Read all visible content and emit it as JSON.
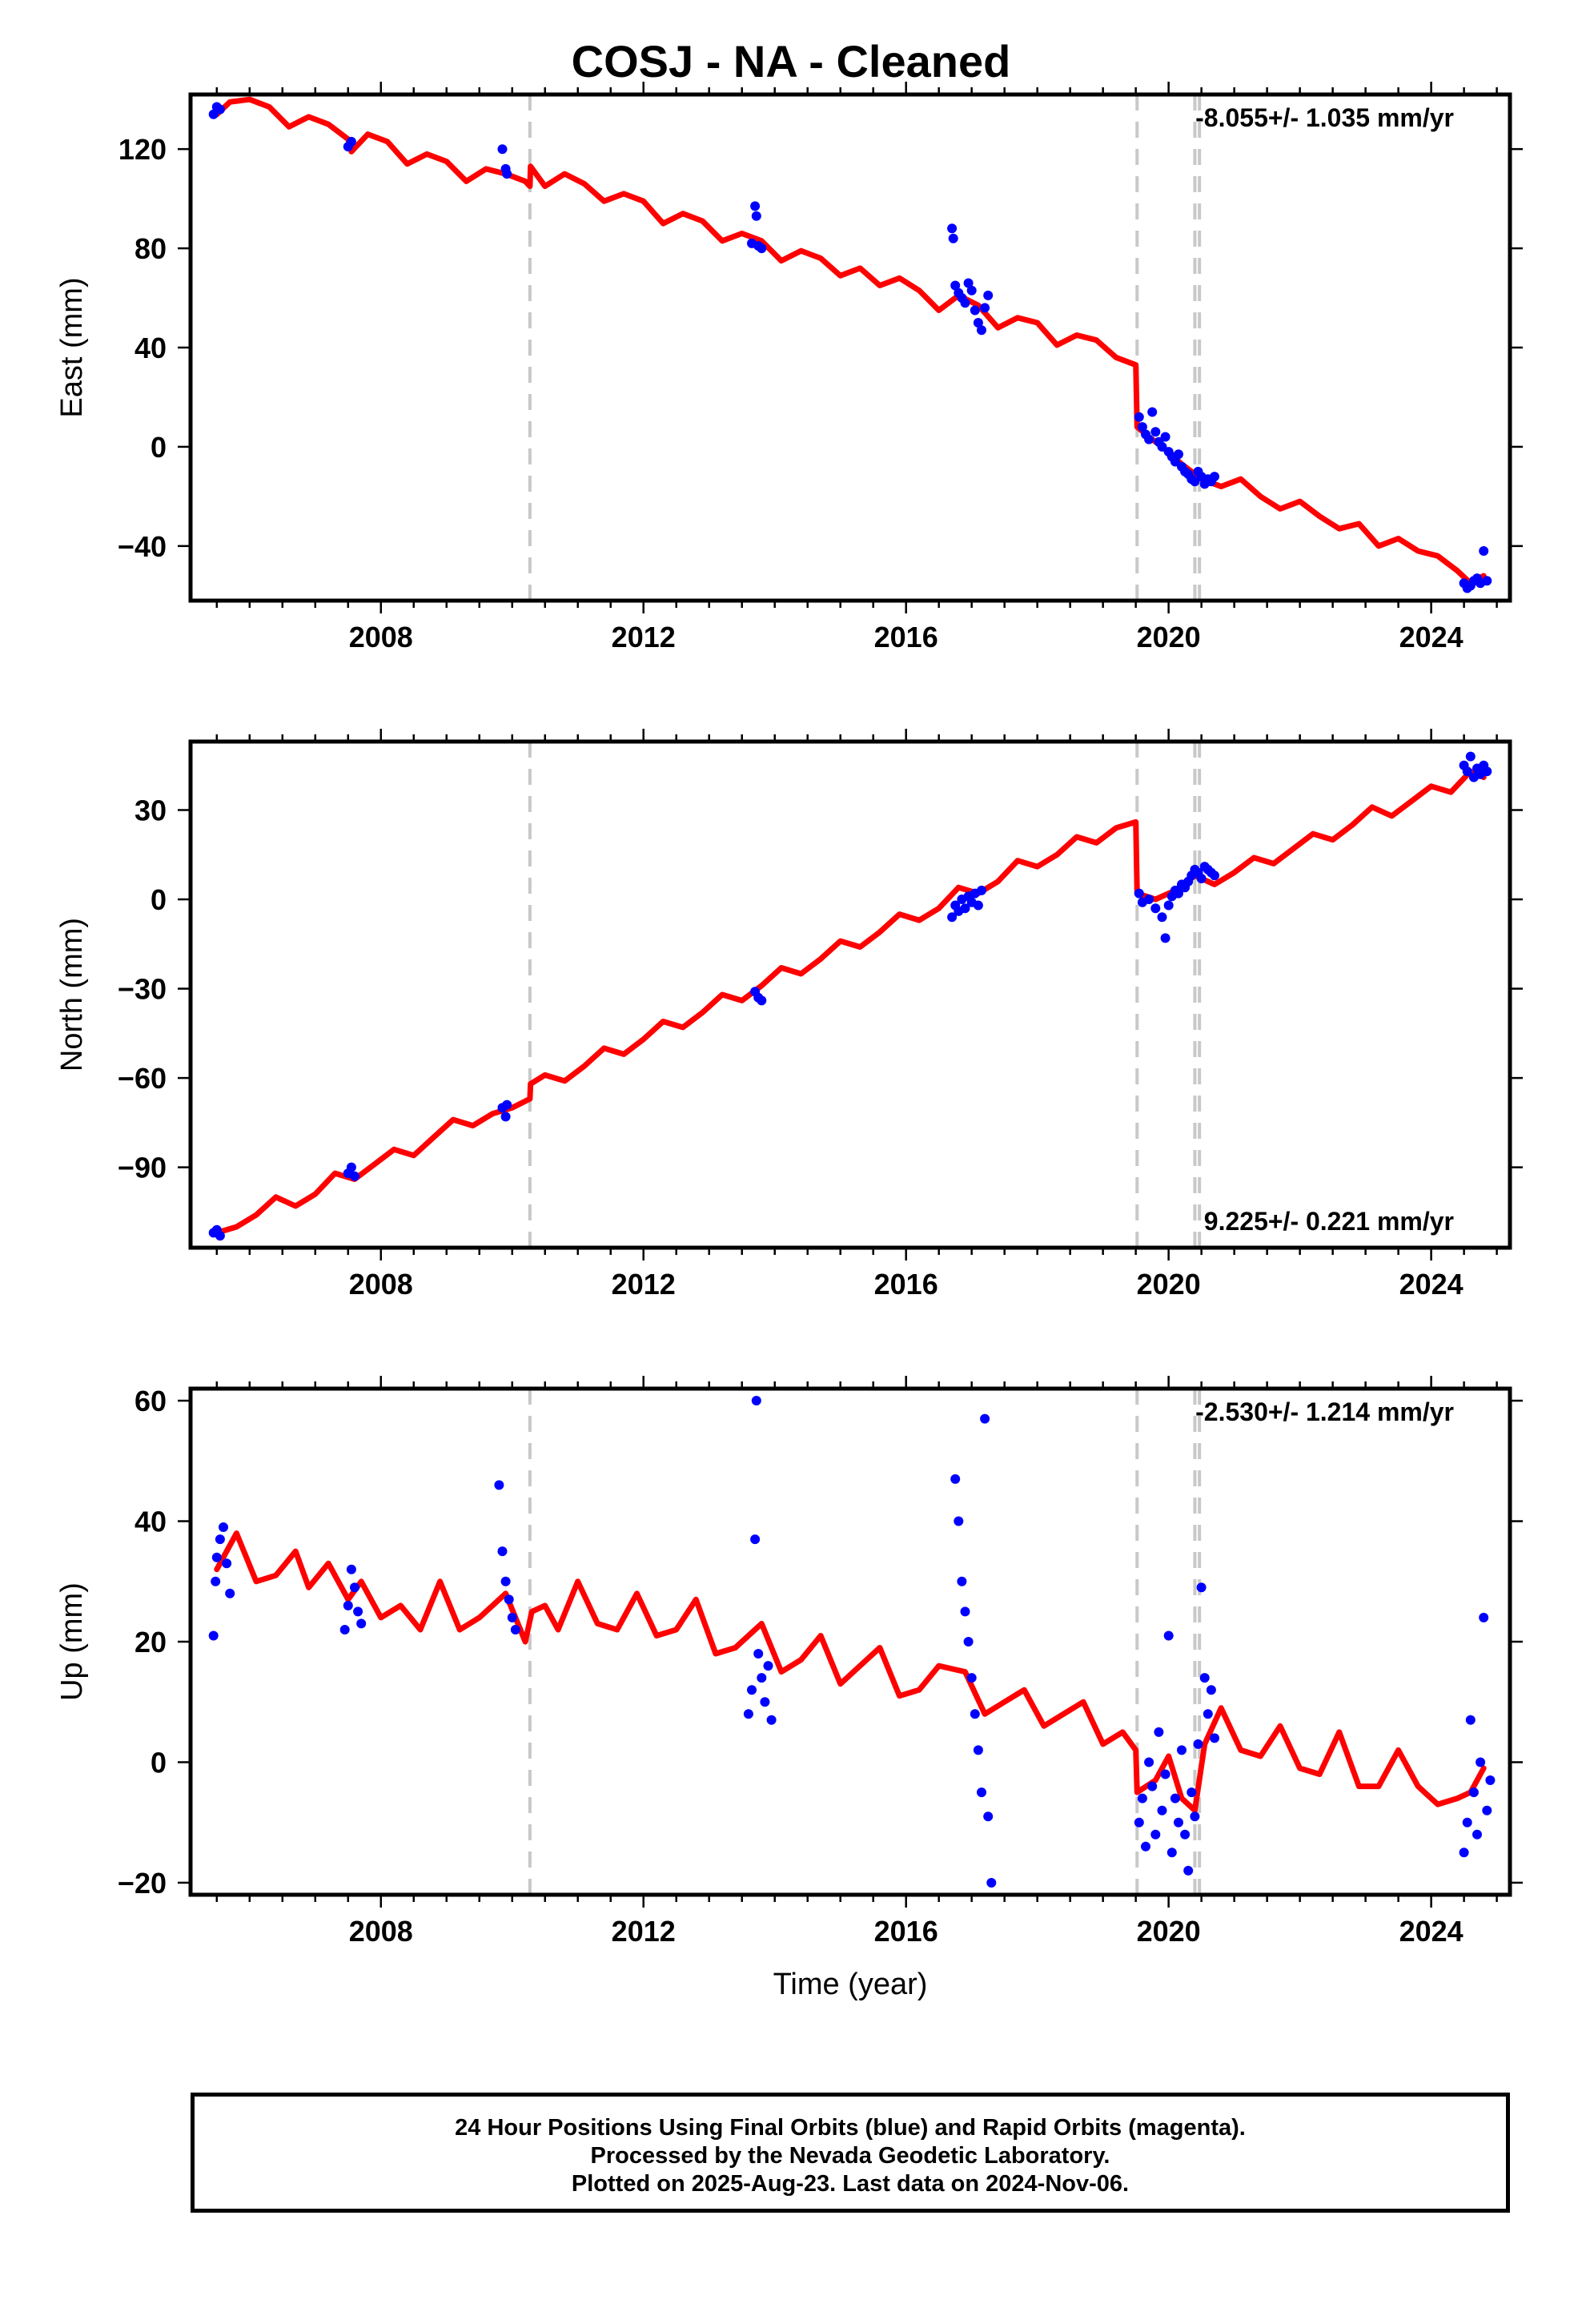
{
  "title": "COSJ  - NA - Cleaned",
  "footer": {
    "lines": [
      "24 Hour Positions Using Final Orbits (blue) and Rapid Orbits (magenta).",
      "Processed by the Nevada Geodetic Laboratory.",
      "Plotted on 2025-Aug-23. Last data on 2024-Nov-06."
    ]
  },
  "colors": {
    "data_points": "#0000ff",
    "model_fit": "#ff0000",
    "event_lines": "#c8c8c8"
  },
  "chart_data": [
    {
      "type": "scatter",
      "name": "East",
      "ylabel": "East (mm)",
      "xlabel": "",
      "xlim": [
        2005.1,
        2025.2
      ],
      "ylim": [
        -62,
        142
      ],
      "xticks": [
        2008,
        2012,
        2016,
        2020,
        2024
      ],
      "yticks": [
        -40,
        0,
        40,
        80,
        120
      ],
      "ytick_labels": [
        "−40",
        "0",
        "40",
        "80",
        "120"
      ],
      "rate_label": "-8.055+/- 1.035 mm/yr",
      "rate_position": "top-right",
      "event_lines": [
        2010.27,
        2019.52,
        2020.4,
        2020.47
      ],
      "model": {
        "x": [
          2005.5,
          2005.7,
          2006.0,
          2006.3,
          2006.6,
          2006.9,
          2007.2,
          2007.5,
          2007.55,
          2007.8,
          2008.1,
          2008.4,
          2008.7,
          2009.0,
          2009.3,
          2009.6,
          2009.9,
          2010.2,
          2010.27,
          2010.28,
          2010.5,
          2010.8,
          2011.1,
          2011.4,
          2011.7,
          2012.0,
          2012.3,
          2012.6,
          2012.9,
          2013.2,
          2013.5,
          2013.8,
          2014.1,
          2014.4,
          2014.7,
          2015.0,
          2015.3,
          2015.6,
          2015.9,
          2016.2,
          2016.5,
          2016.8,
          2017.1,
          2017.4,
          2017.7,
          2018.0,
          2018.3,
          2018.6,
          2018.9,
          2019.2,
          2019.5,
          2019.52,
          2019.7,
          2019.9,
          2020.2,
          2020.5,
          2020.8,
          2021.1,
          2021.4,
          2021.7,
          2022.0,
          2022.3,
          2022.6,
          2022.9,
          2023.2,
          2023.5,
          2023.8,
          2024.1,
          2024.4,
          2024.6,
          2024.8
        ],
        "y": [
          134,
          139,
          140,
          137,
          129,
          133,
          130,
          124,
          119,
          126,
          123,
          114,
          118,
          115,
          107,
          112,
          110,
          107,
          105,
          113,
          105,
          110,
          106,
          99,
          102,
          99,
          90,
          94,
          91,
          83,
          86,
          83,
          75,
          79,
          76,
          69,
          72,
          65,
          68,
          63,
          55,
          61,
          57,
          48,
          52,
          50,
          41,
          45,
          43,
          36,
          33,
          8,
          4,
          0,
          -7,
          -13,
          -16,
          -13,
          -20,
          -25,
          -22,
          -28,
          -33,
          -31,
          -40,
          -37,
          -42,
          -44,
          -50,
          -55,
          -52
        ]
      },
      "points": [
        [
          2005.45,
          134
        ],
        [
          2005.5,
          137
        ],
        [
          2005.55,
          136
        ],
        [
          2007.5,
          121
        ],
        [
          2007.55,
          123
        ],
        [
          2009.85,
          120
        ],
        [
          2009.9,
          112
        ],
        [
          2009.92,
          110
        ],
        [
          2013.65,
          82
        ],
        [
          2013.7,
          97
        ],
        [
          2013.72,
          93
        ],
        [
          2013.75,
          81
        ],
        [
          2013.8,
          80
        ],
        [
          2016.7,
          88
        ],
        [
          2016.72,
          84
        ],
        [
          2016.75,
          65
        ],
        [
          2016.8,
          62
        ],
        [
          2016.85,
          60
        ],
        [
          2016.9,
          58
        ],
        [
          2016.95,
          66
        ],
        [
          2017.0,
          63
        ],
        [
          2017.05,
          55
        ],
        [
          2017.1,
          50
        ],
        [
          2017.15,
          47
        ],
        [
          2017.2,
          56
        ],
        [
          2017.25,
          61
        ],
        [
          2019.55,
          12
        ],
        [
          2019.6,
          8
        ],
        [
          2019.65,
          5
        ],
        [
          2019.7,
          3
        ],
        [
          2019.75,
          14
        ],
        [
          2019.8,
          6
        ],
        [
          2019.85,
          2
        ],
        [
          2019.9,
          0
        ],
        [
          2019.95,
          4
        ],
        [
          2020.0,
          -2
        ],
        [
          2020.05,
          -4
        ],
        [
          2020.1,
          -6
        ],
        [
          2020.15,
          -3
        ],
        [
          2020.2,
          -8
        ],
        [
          2020.25,
          -10
        ],
        [
          2020.3,
          -11
        ],
        [
          2020.35,
          -13
        ],
        [
          2020.4,
          -14
        ],
        [
          2020.45,
          -10
        ],
        [
          2020.5,
          -12
        ],
        [
          2020.55,
          -15
        ],
        [
          2020.6,
          -13
        ],
        [
          2020.65,
          -14
        ],
        [
          2020.7,
          -12
        ],
        [
          2024.5,
          -55
        ],
        [
          2024.55,
          -57
        ],
        [
          2024.6,
          -56
        ],
        [
          2024.65,
          -54
        ],
        [
          2024.7,
          -53
        ],
        [
          2024.75,
          -55
        ],
        [
          2024.8,
          -42
        ],
        [
          2024.85,
          -54
        ]
      ]
    },
    {
      "type": "scatter",
      "name": "North",
      "ylabel": "North (mm)",
      "xlabel": "",
      "xlim": [
        2005.1,
        2025.2
      ],
      "ylim": [
        -117,
        53
      ],
      "xticks": [
        2008,
        2012,
        2016,
        2020,
        2024
      ],
      "yticks": [
        -90,
        -60,
        -30,
        0,
        30
      ],
      "ytick_labels": [
        "−90",
        "−60",
        "−30",
        "0",
        "30"
      ],
      "rate_label": "9.225+/- 0.221 mm/yr",
      "rate_position": "bottom-right",
      "event_lines": [
        2010.27,
        2019.52,
        2020.4,
        2020.47
      ],
      "model": {
        "x": [
          2005.5,
          2005.8,
          2006.1,
          2006.4,
          2006.7,
          2007.0,
          2007.3,
          2007.6,
          2007.9,
          2008.2,
          2008.5,
          2008.8,
          2009.1,
          2009.4,
          2009.7,
          2010.0,
          2010.27,
          2010.28,
          2010.5,
          2010.8,
          2011.1,
          2011.4,
          2011.7,
          2012.0,
          2012.3,
          2012.6,
          2012.9,
          2013.2,
          2013.5,
          2013.8,
          2014.1,
          2014.4,
          2014.7,
          2015.0,
          2015.3,
          2015.6,
          2015.9,
          2016.2,
          2016.5,
          2016.8,
          2017.1,
          2017.4,
          2017.7,
          2018.0,
          2018.3,
          2018.6,
          2018.9,
          2019.2,
          2019.5,
          2019.52,
          2019.8,
          2020.1,
          2020.4,
          2020.7,
          2021.0,
          2021.3,
          2021.6,
          2021.9,
          2022.2,
          2022.5,
          2022.8,
          2023.1,
          2023.4,
          2023.7,
          2024.0,
          2024.3,
          2024.6,
          2024.8
        ],
        "y": [
          -112,
          -110,
          -106,
          -100,
          -103,
          -99,
          -92,
          -94,
          -89,
          -84,
          -86,
          -80,
          -74,
          -76,
          -72,
          -70,
          -67,
          -62,
          -59,
          -61,
          -56,
          -50,
          -52,
          -47,
          -41,
          -43,
          -38,
          -32,
          -34,
          -29,
          -23,
          -25,
          -20,
          -14,
          -16,
          -11,
          -5,
          -7,
          -3,
          4,
          2,
          6,
          13,
          11,
          15,
          21,
          19,
          24,
          26,
          2,
          0,
          3,
          8,
          5,
          9,
          14,
          12,
          17,
          22,
          20,
          25,
          31,
          28,
          33,
          38,
          36,
          43,
          41
        ]
      },
      "points": [
        [
          2005.45,
          -112
        ],
        [
          2005.5,
          -111
        ],
        [
          2005.55,
          -113
        ],
        [
          2007.5,
          -92
        ],
        [
          2007.55,
          -90
        ],
        [
          2007.6,
          -93
        ],
        [
          2009.85,
          -70
        ],
        [
          2009.9,
          -73
        ],
        [
          2009.92,
          -69
        ],
        [
          2013.7,
          -31
        ],
        [
          2013.75,
          -33
        ],
        [
          2013.8,
          -34
        ],
        [
          2016.7,
          -6
        ],
        [
          2016.75,
          -2
        ],
        [
          2016.8,
          -4
        ],
        [
          2016.85,
          0
        ],
        [
          2016.9,
          -3
        ],
        [
          2016.95,
          1
        ],
        [
          2017.0,
          -1
        ],
        [
          2017.05,
          2
        ],
        [
          2017.1,
          -2
        ],
        [
          2017.15,
          3
        ],
        [
          2019.55,
          2
        ],
        [
          2019.6,
          -1
        ],
        [
          2019.7,
          0
        ],
        [
          2019.8,
          -3
        ],
        [
          2019.9,
          -6
        ],
        [
          2019.95,
          -13
        ],
        [
          2020.0,
          -2
        ],
        [
          2020.05,
          1
        ],
        [
          2020.1,
          3
        ],
        [
          2020.15,
          2
        ],
        [
          2020.2,
          5
        ],
        [
          2020.25,
          4
        ],
        [
          2020.3,
          6
        ],
        [
          2020.35,
          8
        ],
        [
          2020.4,
          10
        ],
        [
          2020.45,
          9
        ],
        [
          2020.5,
          7
        ],
        [
          2020.55,
          11
        ],
        [
          2020.6,
          10
        ],
        [
          2020.65,
          9
        ],
        [
          2020.7,
          8
        ],
        [
          2024.5,
          45
        ],
        [
          2024.55,
          43
        ],
        [
          2024.6,
          48
        ],
        [
          2024.65,
          41
        ],
        [
          2024.7,
          44
        ],
        [
          2024.75,
          42
        ],
        [
          2024.8,
          45
        ],
        [
          2024.85,
          43
        ]
      ]
    },
    {
      "type": "scatter",
      "name": "Up",
      "ylabel": "Up (mm)",
      "xlabel": "Time (year)",
      "xlim": [
        2005.1,
        2025.2
      ],
      "ylim": [
        -22,
        62
      ],
      "xticks": [
        2008,
        2012,
        2016,
        2020,
        2024
      ],
      "yticks": [
        -20,
        0,
        20,
        40,
        60
      ],
      "ytick_labels": [
        "−20",
        "0",
        "20",
        "40",
        "60"
      ],
      "rate_label": "-2.530+/- 1.214 mm/yr",
      "rate_position": "top-right",
      "event_lines": [
        2010.27,
        2019.52,
        2020.4,
        2020.47
      ],
      "model": {
        "x": [
          2005.5,
          2005.8,
          2006.1,
          2006.4,
          2006.7,
          2006.9,
          2007.2,
          2007.5,
          2007.7,
          2008.0,
          2008.3,
          2008.6,
          2008.9,
          2009.2,
          2009.5,
          2009.9,
          2010.2,
          2010.3,
          2010.5,
          2010.7,
          2011.0,
          2011.3,
          2011.6,
          2011.9,
          2012.2,
          2012.5,
          2012.8,
          2013.1,
          2013.4,
          2013.8,
          2014.1,
          2014.4,
          2014.7,
          2015.0,
          2015.3,
          2015.6,
          2015.9,
          2016.2,
          2016.5,
          2016.9,
          2017.2,
          2017.5,
          2017.8,
          2018.1,
          2018.4,
          2018.7,
          2019.0,
          2019.3,
          2019.5,
          2019.52,
          2019.8,
          2020.0,
          2020.2,
          2020.4,
          2020.55,
          2020.8,
          2021.1,
          2021.4,
          2021.7,
          2022.0,
          2022.3,
          2022.6,
          2022.9,
          2023.2,
          2023.5,
          2023.8,
          2024.1,
          2024.4,
          2024.6,
          2024.8
        ],
        "y": [
          32,
          38,
          30,
          31,
          35,
          29,
          33,
          27,
          30,
          24,
          26,
          22,
          30,
          22,
          24,
          28,
          20,
          25,
          26,
          22,
          30,
          23,
          22,
          28,
          21,
          22,
          27,
          18,
          19,
          23,
          15,
          17,
          21,
          13,
          16,
          19,
          11,
          12,
          16,
          15,
          8,
          10,
          12,
          6,
          8,
          10,
          3,
          5,
          2,
          -5,
          -3,
          1,
          -6,
          -8,
          3,
          9,
          2,
          1,
          6,
          -1,
          -2,
          5,
          -4,
          -4,
          2,
          -4,
          -7,
          -6,
          -5,
          -1
        ]
      },
      "points": [
        [
          2005.45,
          21
        ],
        [
          2005.48,
          30
        ],
        [
          2005.5,
          34
        ],
        [
          2005.55,
          37
        ],
        [
          2005.6,
          39
        ],
        [
          2005.65,
          33
        ],
        [
          2005.7,
          28
        ],
        [
          2007.45,
          22
        ],
        [
          2007.5,
          26
        ],
        [
          2007.55,
          32
        ],
        [
          2007.6,
          29
        ],
        [
          2007.65,
          25
        ],
        [
          2007.7,
          23
        ],
        [
          2009.8,
          46
        ],
        [
          2009.85,
          35
        ],
        [
          2009.9,
          30
        ],
        [
          2009.95,
          27
        ],
        [
          2010.0,
          24
        ],
        [
          2010.05,
          22
        ],
        [
          2013.6,
          8
        ],
        [
          2013.65,
          12
        ],
        [
          2013.7,
          37
        ],
        [
          2013.72,
          60
        ],
        [
          2013.75,
          18
        ],
        [
          2013.8,
          14
        ],
        [
          2013.85,
          10
        ],
        [
          2013.9,
          16
        ],
        [
          2013.95,
          7
        ],
        [
          2016.75,
          47
        ],
        [
          2016.8,
          40
        ],
        [
          2016.85,
          30
        ],
        [
          2016.9,
          25
        ],
        [
          2016.95,
          20
        ],
        [
          2017.0,
          14
        ],
        [
          2017.05,
          8
        ],
        [
          2017.1,
          2
        ],
        [
          2017.15,
          -5
        ],
        [
          2017.2,
          57
        ],
        [
          2017.25,
          -9
        ],
        [
          2017.3,
          -20
        ],
        [
          2019.55,
          -10
        ],
        [
          2019.6,
          -6
        ],
        [
          2019.65,
          -14
        ],
        [
          2019.7,
          0
        ],
        [
          2019.75,
          -4
        ],
        [
          2019.8,
          -12
        ],
        [
          2019.85,
          5
        ],
        [
          2019.9,
          -8
        ],
        [
          2019.95,
          -2
        ],
        [
          2020.0,
          21
        ],
        [
          2020.05,
          -15
        ],
        [
          2020.1,
          -6
        ],
        [
          2020.15,
          -10
        ],
        [
          2020.2,
          2
        ],
        [
          2020.25,
          -12
        ],
        [
          2020.3,
          -18
        ],
        [
          2020.35,
          -5
        ],
        [
          2020.4,
          -9
        ],
        [
          2020.45,
          3
        ],
        [
          2020.5,
          29
        ],
        [
          2020.55,
          14
        ],
        [
          2020.6,
          8
        ],
        [
          2020.65,
          12
        ],
        [
          2020.7,
          4
        ],
        [
          2024.5,
          -15
        ],
        [
          2024.55,
          -10
        ],
        [
          2024.6,
          7
        ],
        [
          2024.65,
          -5
        ],
        [
          2024.7,
          -12
        ],
        [
          2024.75,
          0
        ],
        [
          2024.8,
          24
        ],
        [
          2024.85,
          -8
        ],
        [
          2024.9,
          -3
        ]
      ]
    }
  ]
}
